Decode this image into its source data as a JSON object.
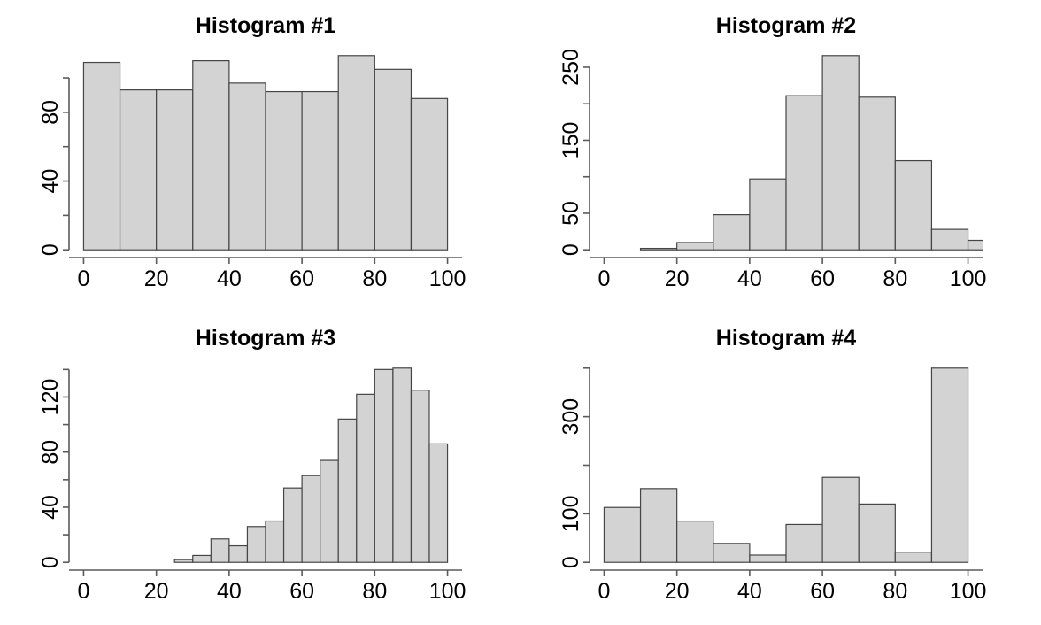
{
  "theme": {
    "background": "#ffffff",
    "bar_fill": "#d3d3d3",
    "bar_border": "#454545",
    "axis_color": "#5a5a5a",
    "text_color": "#000000"
  },
  "chart_data": [
    {
      "type": "bar",
      "title": "Histogram #1",
      "xlabel": "",
      "ylabel": "",
      "bin_start": 0,
      "bin_width": 10,
      "categories": [
        "0-10",
        "10-20",
        "20-30",
        "30-40",
        "40-50",
        "50-60",
        "60-70",
        "70-80",
        "80-90",
        "90-100"
      ],
      "values": [
        109,
        93,
        93,
        110,
        97,
        92,
        92,
        113,
        105,
        88
      ],
      "xlim": [
        0,
        100
      ],
      "ylim": [
        0,
        113
      ],
      "xticks": [
        0,
        20,
        40,
        60,
        80,
        100
      ],
      "xtick_labels": [
        "0",
        "20",
        "40",
        "60",
        "80",
        "100"
      ],
      "yticks": [
        0,
        20,
        40,
        60,
        80,
        100
      ],
      "ytick_labels": [
        "0",
        "",
        "40",
        "",
        "80",
        ""
      ],
      "grid": "off",
      "legend": "none"
    },
    {
      "type": "bar",
      "title": "Histogram #2",
      "xlabel": "",
      "ylabel": "",
      "bin_start": 10,
      "bin_width": 10,
      "categories": [
        "10-20",
        "20-30",
        "30-40",
        "40-50",
        "50-60",
        "60-70",
        "70-80",
        "80-90",
        "90-100",
        "100-110"
      ],
      "values": [
        2,
        10,
        48,
        97,
        211,
        266,
        209,
        122,
        28,
        13
      ],
      "xlim": [
        0,
        100
      ],
      "ylim": [
        0,
        266
      ],
      "xticks": [
        0,
        20,
        40,
        60,
        80,
        100
      ],
      "xtick_labels": [
        "0",
        "20",
        "40",
        "60",
        "80",
        "100"
      ],
      "yticks": [
        0,
        50,
        100,
        150,
        200,
        250
      ],
      "ytick_labels": [
        "0",
        "50",
        "",
        "150",
        "",
        "250"
      ],
      "grid": "off",
      "legend": "none"
    },
    {
      "type": "bar",
      "title": "Histogram #3",
      "xlabel": "",
      "ylabel": "",
      "bin_start": 25,
      "bin_width": 5,
      "categories": [
        "25-30",
        "30-35",
        "35-40",
        "40-45",
        "45-50",
        "50-55",
        "55-60",
        "60-65",
        "65-70",
        "70-75",
        "75-80",
        "80-85",
        "85-90",
        "90-95",
        "95-100"
      ],
      "values": [
        2,
        5,
        17,
        12,
        26,
        30,
        54,
        63,
        74,
        104,
        122,
        140,
        141,
        125,
        86
      ],
      "xlim": [
        0,
        100
      ],
      "ylim": [
        0,
        141
      ],
      "xticks": [
        0,
        20,
        40,
        60,
        80,
        100
      ],
      "xtick_labels": [
        "0",
        "20",
        "40",
        "60",
        "80",
        "100"
      ],
      "yticks": [
        0,
        20,
        40,
        60,
        80,
        100,
        120,
        140
      ],
      "ytick_labels": [
        "0",
        "",
        "40",
        "",
        "80",
        "",
        "120",
        ""
      ],
      "grid": "off",
      "legend": "none"
    },
    {
      "type": "bar",
      "title": "Histogram #4",
      "xlabel": "",
      "ylabel": "",
      "bin_start": 0,
      "bin_width": 10,
      "categories": [
        "0-10",
        "10-20",
        "20-30",
        "30-40",
        "40-50",
        "50-60",
        "60-70",
        "70-80",
        "80-90",
        "90-100"
      ],
      "values": [
        113,
        152,
        85,
        39,
        15,
        78,
        175,
        120,
        21,
        400
      ],
      "xlim": [
        0,
        100
      ],
      "ylim": [
        0,
        400
      ],
      "xticks": [
        0,
        20,
        40,
        60,
        80,
        100
      ],
      "xtick_labels": [
        "0",
        "20",
        "40",
        "60",
        "80",
        "100"
      ],
      "yticks": [
        0,
        100,
        200,
        300,
        400
      ],
      "ytick_labels": [
        "0",
        "100",
        "",
        "300",
        ""
      ],
      "grid": "off",
      "legend": "none"
    }
  ]
}
